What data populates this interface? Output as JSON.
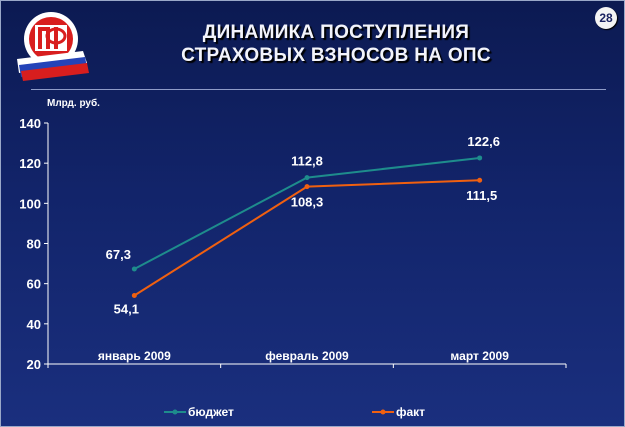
{
  "slide": {
    "title_line1": "ДИНАМИКА ПОСТУПЛЕНИЯ",
    "title_line2": "СТРАХОВЫХ ВЗНОСОВ НА ОПС",
    "page_number": "28",
    "logo_letters": "ПФ"
  },
  "colors": {
    "background": "#12246a",
    "budget": "#1e8c8c",
    "actual": "#f06010",
    "text": "#ffffff"
  },
  "chart_data": {
    "type": "line",
    "categories": [
      "январь 2009",
      "февраль 2009",
      "март 2009"
    ],
    "series": [
      {
        "name": "бюджет",
        "values": [
          67.3,
          112.8,
          122.6
        ],
        "labels": [
          "67,3",
          "112,8",
          "122,6"
        ]
      },
      {
        "name": "факт",
        "values": [
          54.1,
          108.3,
          111.5
        ],
        "labels": [
          "54,1",
          "108,3",
          "111,5"
        ]
      }
    ],
    "ylabel": "Млрд. руб.",
    "ylim": [
      20,
      140
    ],
    "yticks": [
      20,
      40,
      60,
      80,
      100,
      120,
      140
    ],
    "legend_position": "bottom",
    "grid": false
  }
}
